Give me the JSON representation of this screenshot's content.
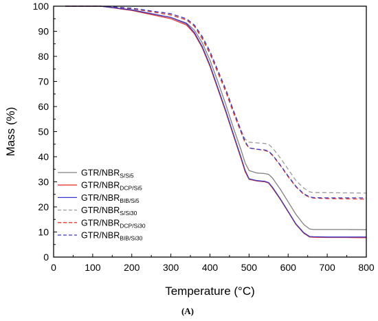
{
  "chart_data": {
    "type": "line",
    "xlabel": "Temperature (°C)",
    "ylabel": "Mass (%)",
    "xlim": [
      0,
      800
    ],
    "ylim": [
      0,
      100
    ],
    "xticks": [
      0,
      100,
      200,
      300,
      400,
      500,
      600,
      700,
      800
    ],
    "yticks": [
      0,
      10,
      20,
      30,
      40,
      50,
      60,
      70,
      80,
      90,
      100
    ],
    "grid": false,
    "legend_position": "left-center",
    "panel_label": "(A)",
    "series": [
      {
        "name": "GTR/NBR",
        "name_sub": "S/Si5",
        "color": "#808080",
        "dash": "solid",
        "x": [
          30,
          120,
          200,
          300,
          340,
          360,
          380,
          400,
          420,
          440,
          460,
          480,
          490,
          500,
          520,
          540,
          550,
          560,
          580,
          600,
          620,
          640,
          655,
          665,
          700,
          750,
          800
        ],
        "y": [
          100,
          100,
          98.6,
          95.5,
          93.3,
          90.5,
          85.5,
          78.5,
          70,
          61,
          51.5,
          42.5,
          37.5,
          34.5,
          33.5,
          33.3,
          33,
          31.5,
          27,
          22,
          17,
          13,
          11.2,
          11,
          11,
          11,
          10.9
        ]
      },
      {
        "name": "GTR/NBR",
        "name_sub": "DCP/Si5",
        "color": "#e8382f",
        "dash": "solid",
        "x": [
          30,
          120,
          200,
          300,
          340,
          360,
          380,
          400,
          420,
          440,
          460,
          480,
          490,
          500,
          520,
          540,
          550,
          560,
          580,
          600,
          620,
          640,
          655,
          665,
          700,
          750,
          800
        ],
        "y": [
          100,
          100,
          98.3,
          95,
          92.5,
          89,
          83.5,
          76,
          67,
          58,
          48.5,
          39,
          34,
          31,
          30.3,
          30,
          29.5,
          27.5,
          23,
          18,
          13,
          9.5,
          8,
          7.9,
          7.8,
          7.8,
          7.7
        ]
      },
      {
        "name": "GTR/NBR",
        "name_sub": "BIB/Si5",
        "color": "#3535c8",
        "dash": "solid",
        "x": [
          30,
          120,
          200,
          300,
          340,
          360,
          380,
          400,
          420,
          440,
          460,
          480,
          490,
          500,
          520,
          540,
          550,
          560,
          580,
          600,
          620,
          640,
          655,
          665,
          700,
          750,
          800
        ],
        "y": [
          100,
          100,
          98.5,
          95.5,
          93,
          89.5,
          84,
          76.5,
          67.5,
          58.5,
          49,
          39.5,
          34.5,
          31.2,
          30.5,
          30.2,
          29.7,
          27.8,
          23.2,
          18.2,
          13.2,
          9.7,
          8.2,
          8.1,
          8,
          8,
          8
        ]
      },
      {
        "name": "GTR/NBR",
        "name_sub": "S/Si30",
        "color": "#9a9a9a",
        "dash": "dashed",
        "x": [
          30,
          120,
          200,
          300,
          340,
          360,
          380,
          400,
          420,
          440,
          460,
          480,
          490,
          500,
          520,
          540,
          550,
          560,
          580,
          600,
          620,
          640,
          655,
          665,
          700,
          750,
          800
        ],
        "y": [
          100,
          100,
          99,
          96.5,
          94.5,
          92,
          87.5,
          81.5,
          74,
          66.5,
          58.5,
          50.5,
          47,
          45.8,
          45.5,
          45.3,
          45,
          43.5,
          39.5,
          35,
          30.5,
          27.5,
          26,
          25.7,
          25.7,
          25.6,
          25.5
        ]
      },
      {
        "name": "GTR/NBR",
        "name_sub": "DCP/Si30",
        "color": "#e8382f",
        "dash": "dashed",
        "x": [
          30,
          120,
          200,
          300,
          340,
          360,
          380,
          400,
          420,
          440,
          460,
          480,
          490,
          500,
          520,
          540,
          550,
          560,
          580,
          600,
          620,
          640,
          655,
          665,
          700,
          750,
          800
        ],
        "y": [
          100,
          100,
          99,
          96.5,
          94.5,
          92,
          87,
          81,
          73.5,
          66,
          57.5,
          49.5,
          45.5,
          43.5,
          43,
          42.5,
          42,
          40.5,
          36.5,
          32,
          28,
          25,
          23.8,
          23.5,
          23.3,
          23.2,
          23.1
        ]
      },
      {
        "name": "GTR/NBR",
        "name_sub": "BIB/Si30",
        "color": "#3535c8",
        "dash": "dashed",
        "x": [
          30,
          120,
          200,
          300,
          340,
          360,
          380,
          400,
          420,
          440,
          460,
          480,
          490,
          500,
          520,
          540,
          550,
          560,
          580,
          600,
          620,
          640,
          655,
          665,
          700,
          750,
          800
        ],
        "y": [
          100,
          100,
          99.2,
          97,
          95,
          92.5,
          88,
          82,
          74.5,
          67,
          58.5,
          50,
          46,
          43.5,
          43,
          42.7,
          42.2,
          40.7,
          36.7,
          32.3,
          28.2,
          25.2,
          24,
          23.7,
          23.6,
          23.6,
          23.6
        ]
      }
    ]
  }
}
